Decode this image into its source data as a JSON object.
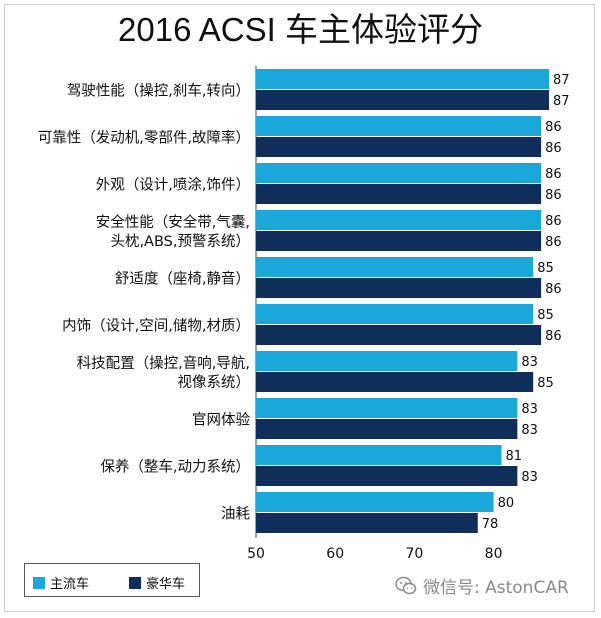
{
  "chart_data": {
    "type": "bar",
    "orientation": "horizontal",
    "title": "2016 ACSI 车主体验评分",
    "categories": [
      [
        "驾驶性能（操控,刹车,转向）"
      ],
      [
        "可靠性（发动机,零部件,故障率）"
      ],
      [
        "外观（设计,喷涂,饰件）"
      ],
      [
        "安全性能（安全带,气囊,",
        "头枕,ABS,预警系统）"
      ],
      [
        "舒适度（座椅,静音）"
      ],
      [
        "内饰（设计,空间,储物,材质）"
      ],
      [
        "科技配置（操控,音响,导航,",
        "视像系统）"
      ],
      [
        "官网体验"
      ],
      [
        "保养（整车,动力系统）"
      ],
      [
        "油耗"
      ]
    ],
    "series": [
      {
        "name": "主流车",
        "color": "#1aa7d9",
        "values": [
          87,
          86,
          86,
          86,
          85,
          85,
          83,
          83,
          81,
          80
        ]
      },
      {
        "name": "豪华车",
        "color": "#0f2e5a",
        "values": [
          87,
          86,
          86,
          86,
          86,
          86,
          85,
          83,
          83,
          78
        ]
      }
    ],
    "xlim": [
      50,
      88
    ],
    "xticks": [
      50,
      60,
      70,
      80
    ],
    "grid": false,
    "legend": "bottom-left"
  },
  "watermark": {
    "text": "微信号: AstonCAR",
    "icon": "wechat-icon"
  }
}
